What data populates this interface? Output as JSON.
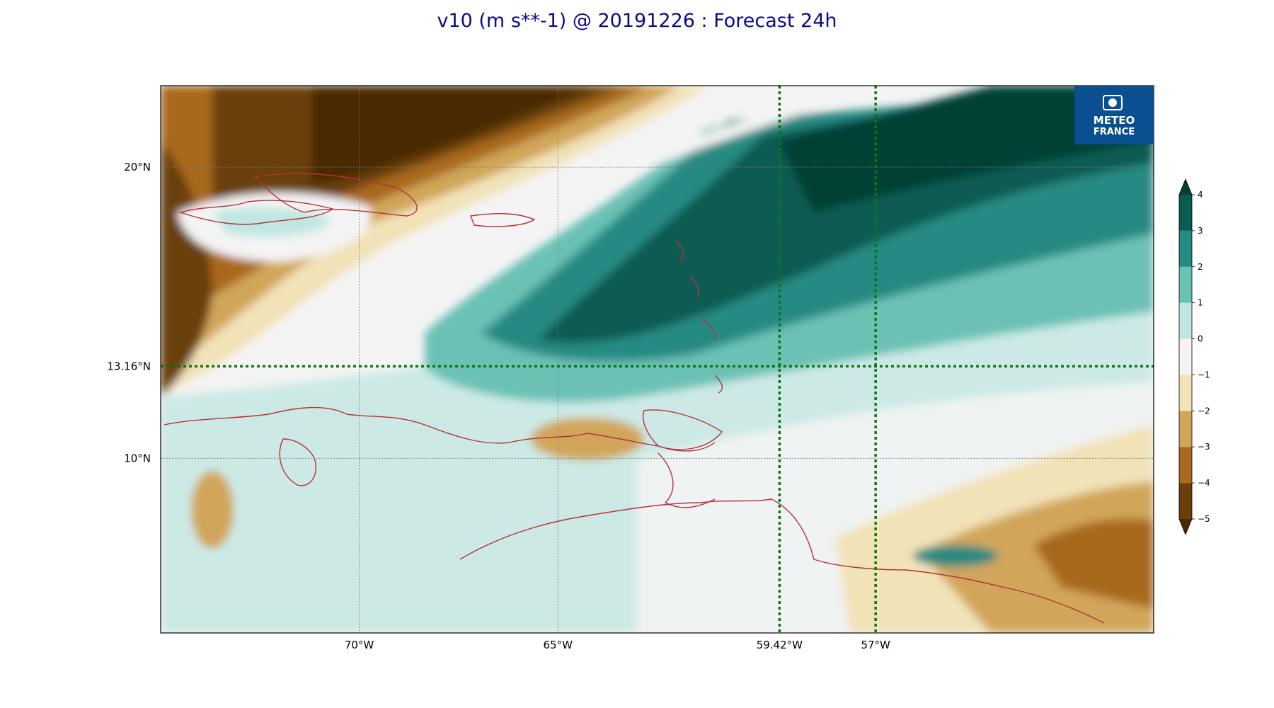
{
  "title": "v10 (m s**-1) @ 20191226 : Forecast 24h",
  "logo": {
    "line1": "METEO",
    "line2": "FRANCE",
    "bg": "#0a4f8f"
  },
  "map": {
    "lon_range": [
      -75,
      -50
    ],
    "lat_range": [
      4,
      22.8
    ],
    "lon_ticks": [
      {
        "value": -70,
        "label": "70°W"
      },
      {
        "value": -65,
        "label": "65°W"
      },
      {
        "value": -59.42,
        "label": "59.42°W"
      },
      {
        "value": -57,
        "label": "57°W"
      }
    ],
    "lat_ticks": [
      {
        "value": 20,
        "label": "20°N"
      },
      {
        "value": 13.16,
        "label": "13.16°N"
      },
      {
        "value": 10,
        "label": "10°N"
      }
    ],
    "highlight_lons": [
      -59.42,
      -57
    ],
    "highlight_lat": 13.16,
    "highlight_color": "#0a7a0a",
    "coast_color": "#b5323a"
  },
  "colorbar": {
    "levels": [
      -5,
      -4,
      -3,
      -2,
      -1,
      0,
      1,
      2,
      3,
      4
    ],
    "labels": [
      "−5",
      "−4",
      "−3",
      "−2",
      "−1",
      "0",
      "1",
      "2",
      "3",
      "4"
    ],
    "colors": [
      "#6b3f0c",
      "#a9691f",
      "#d1a65a",
      "#f2e2b8",
      "#f4f4f4",
      "#bfe6e1",
      "#6cc1b5",
      "#258a82",
      "#0b5b52"
    ],
    "under_color": "#4a2a06",
    "over_color": "#054036"
  }
}
